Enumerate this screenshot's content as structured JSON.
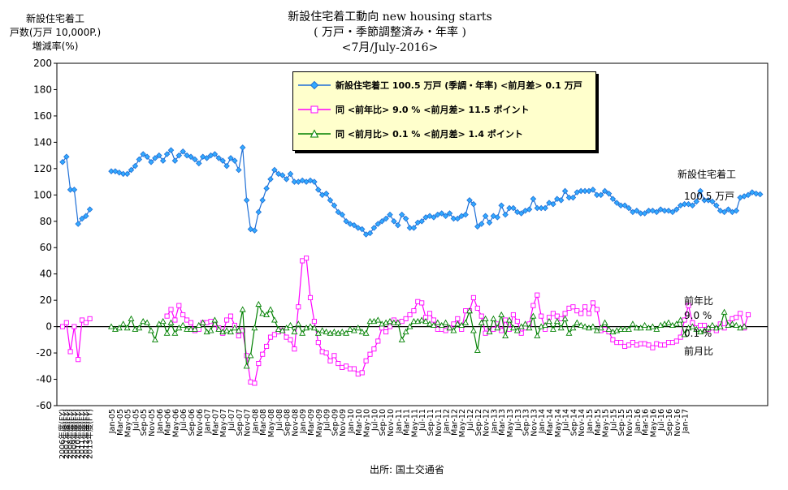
{
  "chart_data": {
    "type": "line",
    "title": [
      "新設住宅着工動向 new housing starts",
      "( 万戸・季節調整済み・年率 )",
      "<7月/July-2016>"
    ],
    "ylabel": [
      "新設住宅着工",
      "戸数(万戸 10,000P.)",
      "増減率(%)"
    ],
    "ylim": [
      -60,
      200
    ],
    "yticks": [
      200,
      180,
      160,
      140,
      120,
      100,
      80,
      60,
      40,
      20,
      0,
      -20,
      -40,
      -60
    ],
    "annual_labels": [
      "2006年度(FY)",
      "2007年度(FY)",
      "2008年度(FY)",
      "2009年度(FY)",
      "2010年度(FY)",
      "2011年度(FY)",
      "2012年度(FY)",
      "2013年度(FY)"
    ],
    "month_labels": [
      "Jan-05",
      "Mar-05",
      "May-05",
      "Jul-05",
      "Sep-05",
      "Nov-05",
      "Jan-06",
      "Mar-06",
      "May-06",
      "Jul-06",
      "Sep-06",
      "Nov-06",
      "Jan-07",
      "Mar-07",
      "May-07",
      "Jul-07",
      "Sep-07",
      "Nov-07",
      "Jan-08",
      "Mar-08",
      "May-08",
      "Jul-08",
      "Sep-08",
      "Nov-08",
      "Jan-09",
      "Mar-09",
      "May-09",
      "Jul-09",
      "Sep-09",
      "Nov-09",
      "Jan-10",
      "Mar-10",
      "May-10",
      "Jul-10",
      "Sep-10",
      "Nov-10",
      "Jan-11",
      "Mar-11",
      "May-11",
      "Jul-11",
      "Sep-11",
      "Nov-11",
      "Jan-12",
      "Mar-12",
      "May-12",
      "Jul-12",
      "Sep-12",
      "Nov-12",
      "Jan-13",
      "Mar-13",
      "May-13",
      "Jul-13",
      "Sep-13",
      "Nov-13",
      "Jan-14",
      "Mar-14",
      "May-14",
      "Jul-14",
      "Sep-14",
      "Nov-14",
      "Jan-15",
      "Mar-15",
      "May-15",
      "Jul-15",
      "Sep-15",
      "Nov-15",
      "Jan-16",
      "Mar-16",
      "May-16",
      "Jul-16",
      "Sep-16",
      "Nov-16",
      "Jan-17"
    ],
    "series": [
      {
        "name": "新設住宅着工 100.5 万戸 (季調・年率) <前月差> 0.1 万戸",
        "color": "#1f6fd6",
        "marker": "diamond",
        "annual": [
          125,
          129,
          104,
          104,
          78,
          82,
          84,
          89
        ],
        "monthly": [
          118,
          118,
          117,
          116,
          116,
          119,
          122,
          127,
          131,
          129,
          125,
          128,
          130,
          126,
          131,
          134,
          126,
          130,
          133,
          130,
          129,
          127,
          124,
          129,
          128,
          130,
          131,
          128,
          126,
          122,
          128,
          126,
          119,
          136,
          96,
          74,
          73,
          87,
          96,
          105,
          112,
          119,
          116,
          115,
          112,
          116,
          110,
          110,
          111,
          110,
          111,
          110,
          104,
          100,
          101,
          96,
          92,
          87,
          85,
          80,
          78,
          77,
          75,
          74,
          70,
          71,
          75,
          78,
          80,
          82,
          85,
          80,
          77,
          85,
          82,
          75,
          75,
          79,
          80,
          83,
          84,
          83,
          85,
          86,
          84,
          86,
          82,
          82,
          84,
          85,
          96,
          93,
          76,
          78,
          84,
          79,
          84,
          83,
          92,
          85,
          90,
          90,
          87,
          86,
          88,
          89,
          97,
          90,
          90,
          90,
          94,
          93,
          97,
          96,
          103,
          98,
          98,
          102,
          103,
          103,
          103,
          104,
          100,
          100,
          103,
          101,
          97,
          94,
          92,
          92,
          90,
          87,
          88,
          86,
          86,
          88,
          88,
          87,
          89,
          88,
          88,
          87,
          89,
          92,
          93,
          93,
          92,
          95,
          103,
          96,
          96,
          95,
          92,
          88,
          87,
          89,
          87,
          88,
          98,
          99,
          100,
          102,
          101,
          100.5
        ]
      },
      {
        "name": "同 <前年比> 9.0 % <前月差> 11.5 ポイント",
        "color": "#ff00ff",
        "marker": "square",
        "annual": [
          0,
          3,
          -19,
          0,
          -25,
          5,
          3,
          6
        ],
        "monthly": [
          null,
          null,
          null,
          null,
          null,
          null,
          null,
          null,
          null,
          null,
          null,
          null,
          null,
          null,
          8,
          13,
          5,
          16,
          9,
          5,
          3,
          -3,
          -2,
          3,
          3,
          4,
          2,
          -1,
          -5,
          5,
          8,
          1,
          -7,
          -3,
          -22,
          -42,
          -43,
          -28,
          -21,
          -15,
          -8,
          -6,
          -4,
          -3,
          -8,
          -10,
          -17,
          15,
          50,
          52,
          22,
          4,
          -12,
          -19,
          -20,
          -26,
          -22,
          -28,
          -31,
          -30,
          -32,
          -32,
          -36,
          -35,
          -26,
          -21,
          -17,
          -11,
          -1,
          -4,
          0,
          5,
          3,
          4,
          6,
          9,
          12,
          19,
          18,
          7,
          10,
          5,
          -2,
          -2,
          -3,
          -1,
          2,
          6,
          -2,
          12,
          12,
          22,
          14,
          8,
          -5,
          -3,
          -2,
          2,
          -3,
          5,
          -2,
          9,
          4,
          -5,
          -1,
          2,
          16,
          24,
          8,
          -2,
          7,
          10,
          8,
          6,
          10,
          14,
          15,
          12,
          10,
          15,
          10,
          18,
          13,
          -3,
          -2,
          -4,
          -10,
          -12,
          -12,
          -15,
          -14,
          -12,
          -14,
          -13,
          -13,
          -14,
          -16,
          -13,
          -14,
          -14,
          -12,
          -12,
          -11,
          -8,
          5,
          16,
          3,
          -1,
          1,
          1,
          -2,
          -1,
          -3,
          2,
          -1,
          3,
          6,
          7,
          10,
          -1,
          9
        ]
      },
      {
        "name": "同 <前月比> 0.1 % <前月差> 1.4 ポイント",
        "color": "#008000",
        "marker": "triangle",
        "annual": [
          null,
          null,
          null,
          null,
          null,
          null,
          null,
          null
        ],
        "monthly": [
          0,
          -2,
          -1,
          2,
          -1,
          6,
          -2,
          -1,
          4,
          3,
          -3,
          -10,
          2,
          4,
          -5,
          3,
          -5,
          -1,
          1,
          -2,
          -2,
          -2,
          1,
          3,
          -4,
          -3,
          5,
          -2,
          -4,
          -3,
          -4,
          -1,
          -3,
          13,
          -30,
          -22,
          -1,
          17,
          10,
          9,
          13,
          5,
          -2,
          -3,
          -1,
          1,
          -4,
          2,
          -5,
          -1,
          0,
          -1,
          -5,
          -3,
          -4,
          -5,
          -4,
          -5,
          -4,
          -5,
          -2,
          -3,
          -1,
          -4,
          -5,
          4,
          4,
          5,
          2,
          3,
          4,
          3,
          3,
          -10,
          -4,
          0,
          4,
          4,
          5,
          4,
          2,
          1,
          3,
          1,
          3,
          -1,
          -3,
          2,
          1,
          3,
          12,
          -3,
          -18,
          3,
          6,
          -4,
          6,
          -1,
          9,
          -7,
          5,
          -1,
          -3,
          0,
          2,
          -1,
          8,
          -7,
          0,
          1,
          4,
          -2,
          4,
          -1,
          6,
          -5,
          -1,
          3,
          1,
          0,
          -1,
          0,
          -3,
          -1,
          3,
          -2,
          -4,
          -3,
          -2,
          -2,
          -2,
          2,
          -1,
          -1,
          1,
          -1,
          0,
          -2,
          1,
          2,
          3,
          1,
          2,
          5,
          -6,
          -1,
          0,
          -2,
          -4,
          -3,
          -1,
          1,
          -1,
          0,
          11,
          1,
          2,
          1,
          -1,
          0.1
        ]
      }
    ],
    "annotations": {
      "housing_label": "新設住宅着工",
      "housing_value": "100.5 万戸",
      "yoy_label": "前年比",
      "yoy_value": "9.0 %",
      "mom_value": "0.1 %",
      "mom_label": "前月比"
    },
    "source": "出所: 国土交通省"
  }
}
